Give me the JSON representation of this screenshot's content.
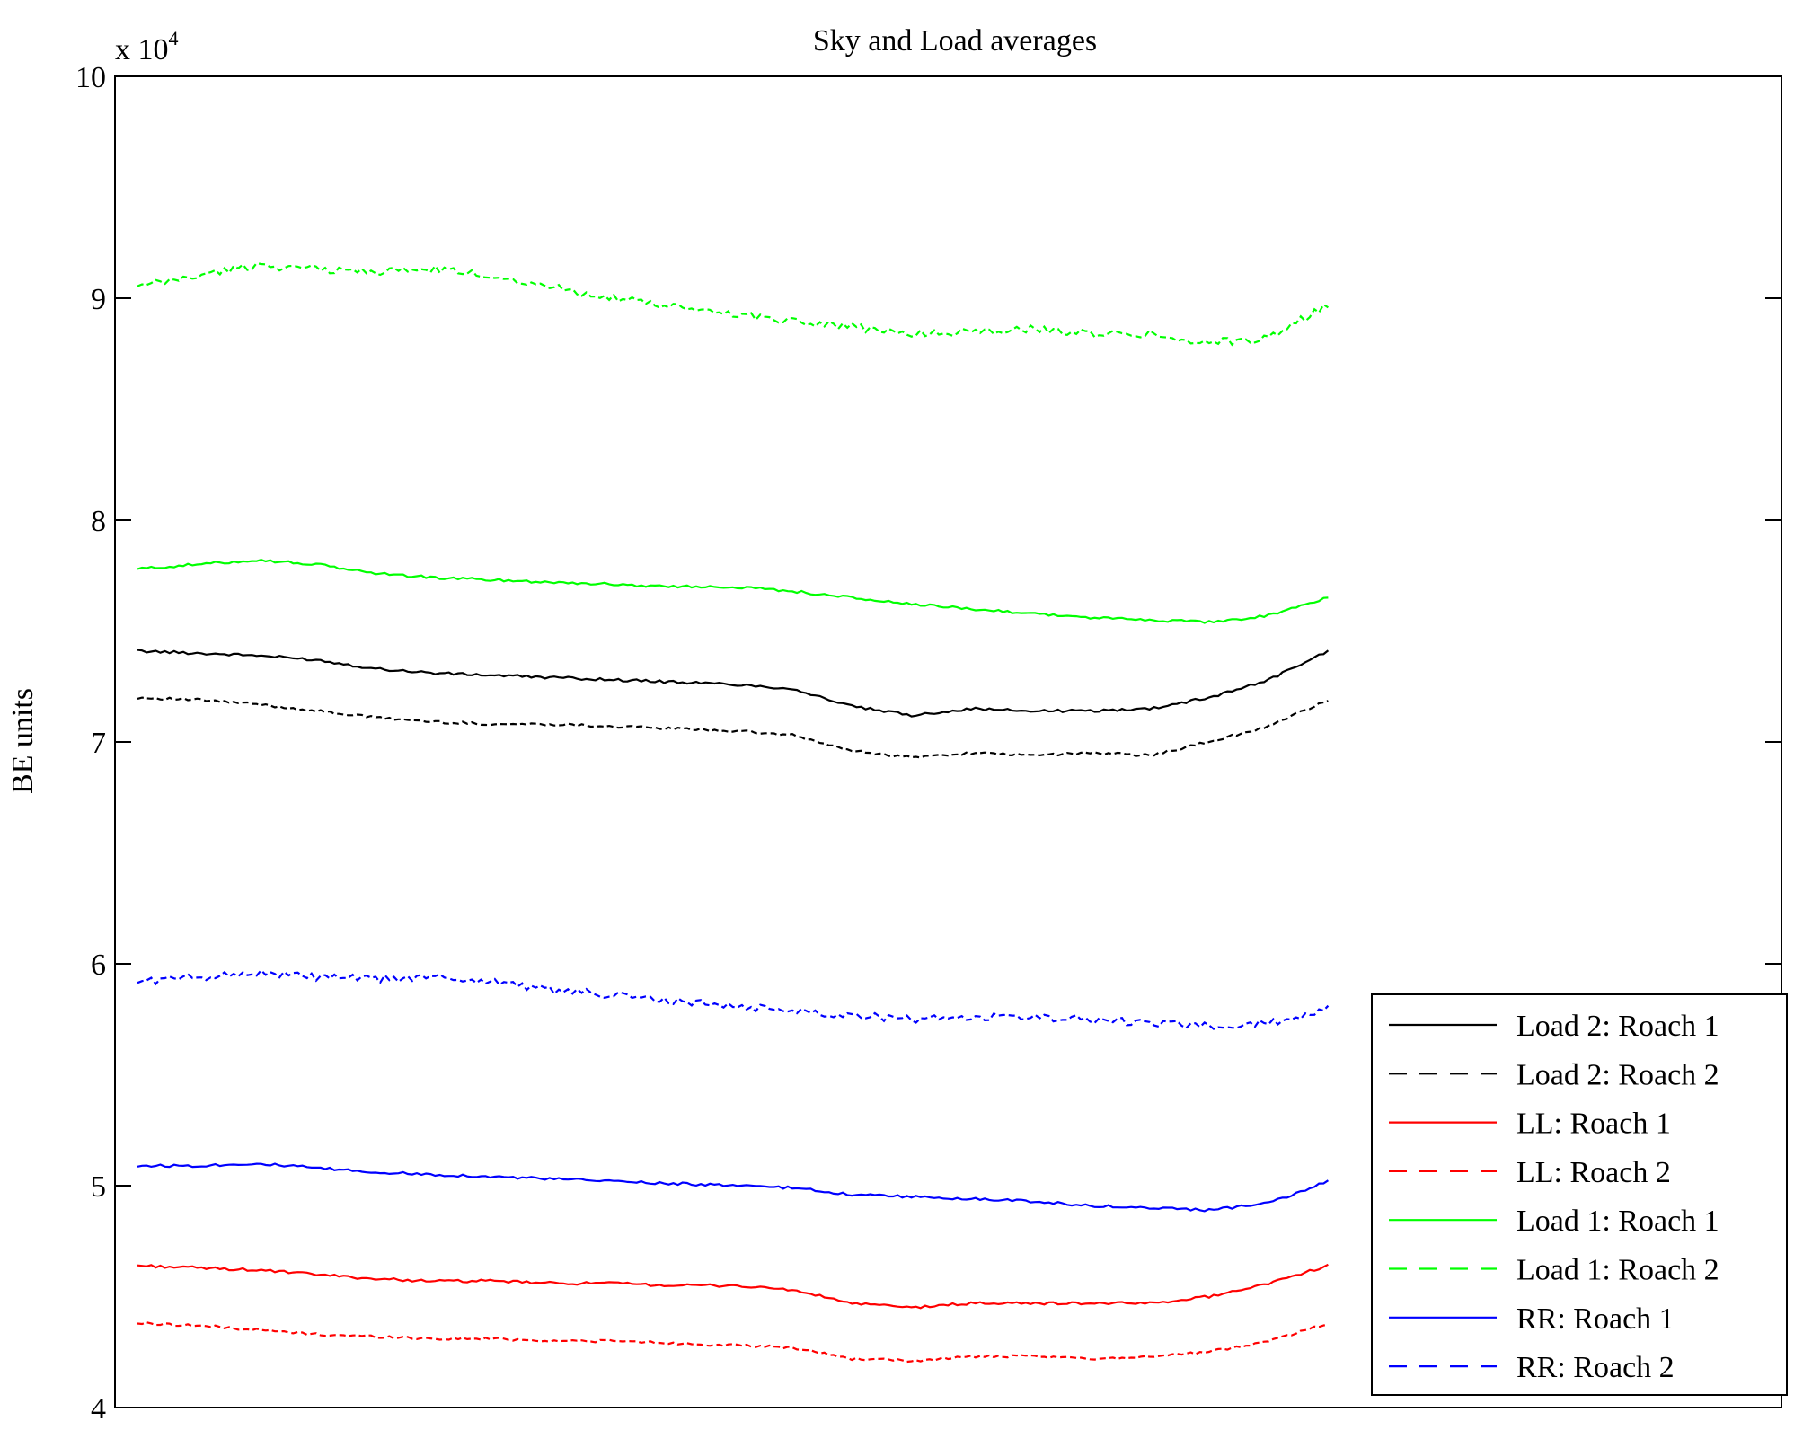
{
  "chart_data": {
    "type": "line",
    "title": "Sky and Load averages",
    "xlabel": "",
    "ylabel": "BE units",
    "y_multiplier_label": "x 10",
    "y_multiplier_exponent": "4",
    "ylim": [
      4,
      10
    ],
    "yticks": [
      {
        "value": 4,
        "label": "4"
      },
      {
        "value": 5,
        "label": "5"
      },
      {
        "value": 6,
        "label": "6"
      },
      {
        "value": 7,
        "label": "7"
      },
      {
        "value": 8,
        "label": "8"
      },
      {
        "value": 9,
        "label": "9"
      },
      {
        "value": 10,
        "label": "10"
      }
    ],
    "xlim": [
      0,
      1
    ],
    "x": [
      0,
      0.05,
      0.1,
      0.15,
      0.2,
      0.25,
      0.3,
      0.35,
      0.4,
      0.45,
      0.5,
      0.55,
      0.6,
      0.65,
      0.7,
      0.75,
      0.8,
      0.85,
      0.9,
      0.95,
      1.0
    ],
    "legend_position": "bottom-right",
    "series": [
      {
        "name": "Load 2: Roach 1",
        "color": "#000000",
        "dash": "solid",
        "values": [
          7.41,
          7.4,
          7.39,
          7.37,
          7.33,
          7.31,
          7.3,
          7.29,
          7.28,
          7.27,
          7.26,
          7.24,
          7.16,
          7.12,
          7.15,
          7.14,
          7.14,
          7.15,
          7.2,
          7.28,
          7.41
        ]
      },
      {
        "name": "Load 2: Roach 2",
        "color": "#000000",
        "dash": "dashed",
        "values": [
          7.2,
          7.19,
          7.17,
          7.14,
          7.11,
          7.09,
          7.08,
          7.08,
          7.07,
          7.06,
          7.05,
          7.03,
          6.96,
          6.93,
          6.95,
          6.94,
          6.95,
          6.94,
          7.0,
          7.07,
          7.19
        ]
      },
      {
        "name": "LL: Roach 1",
        "color": "#ff0000",
        "dash": "solid",
        "values": [
          4.64,
          4.63,
          4.62,
          4.6,
          4.58,
          4.57,
          4.57,
          4.56,
          4.56,
          4.55,
          4.55,
          4.53,
          4.47,
          4.45,
          4.47,
          4.47,
          4.47,
          4.47,
          4.5,
          4.56,
          4.64
        ]
      },
      {
        "name": "LL: Roach 2",
        "color": "#ff0000",
        "dash": "dashed",
        "values": [
          4.38,
          4.37,
          4.35,
          4.33,
          4.32,
          4.31,
          4.31,
          4.3,
          4.3,
          4.29,
          4.28,
          4.27,
          4.22,
          4.21,
          4.23,
          4.23,
          4.22,
          4.23,
          4.25,
          4.3,
          4.38
        ]
      },
      {
        "name": "Load 1: Roach 1",
        "color": "#00ff00",
        "dash": "solid",
        "values": [
          7.78,
          7.8,
          7.82,
          7.8,
          7.76,
          7.74,
          7.73,
          7.72,
          7.71,
          7.7,
          7.7,
          7.68,
          7.65,
          7.62,
          7.6,
          7.58,
          7.56,
          7.55,
          7.54,
          7.57,
          7.65
        ]
      },
      {
        "name": "Load 1: Roach 2",
        "color": "#00ff00",
        "dash": "dashed",
        "values": [
          9.05,
          9.1,
          9.15,
          9.13,
          9.12,
          9.13,
          9.1,
          9.05,
          9.0,
          8.96,
          8.93,
          8.9,
          8.87,
          8.84,
          8.85,
          8.86,
          8.84,
          8.84,
          8.8,
          8.82,
          8.97
        ]
      },
      {
        "name": "RR: Roach 1",
        "color": "#0000ff",
        "dash": "solid",
        "values": [
          5.09,
          5.09,
          5.1,
          5.08,
          5.06,
          5.05,
          5.04,
          5.03,
          5.02,
          5.01,
          5.0,
          4.99,
          4.96,
          4.95,
          4.94,
          4.93,
          4.91,
          4.9,
          4.89,
          4.92,
          5.02
        ]
      },
      {
        "name": "RR: Roach 2",
        "color": "#0000ff",
        "dash": "dashed",
        "values": [
          5.92,
          5.94,
          5.96,
          5.94,
          5.93,
          5.94,
          5.92,
          5.88,
          5.86,
          5.83,
          5.81,
          5.79,
          5.77,
          5.75,
          5.76,
          5.76,
          5.75,
          5.73,
          5.72,
          5.73,
          5.8
        ]
      }
    ]
  }
}
